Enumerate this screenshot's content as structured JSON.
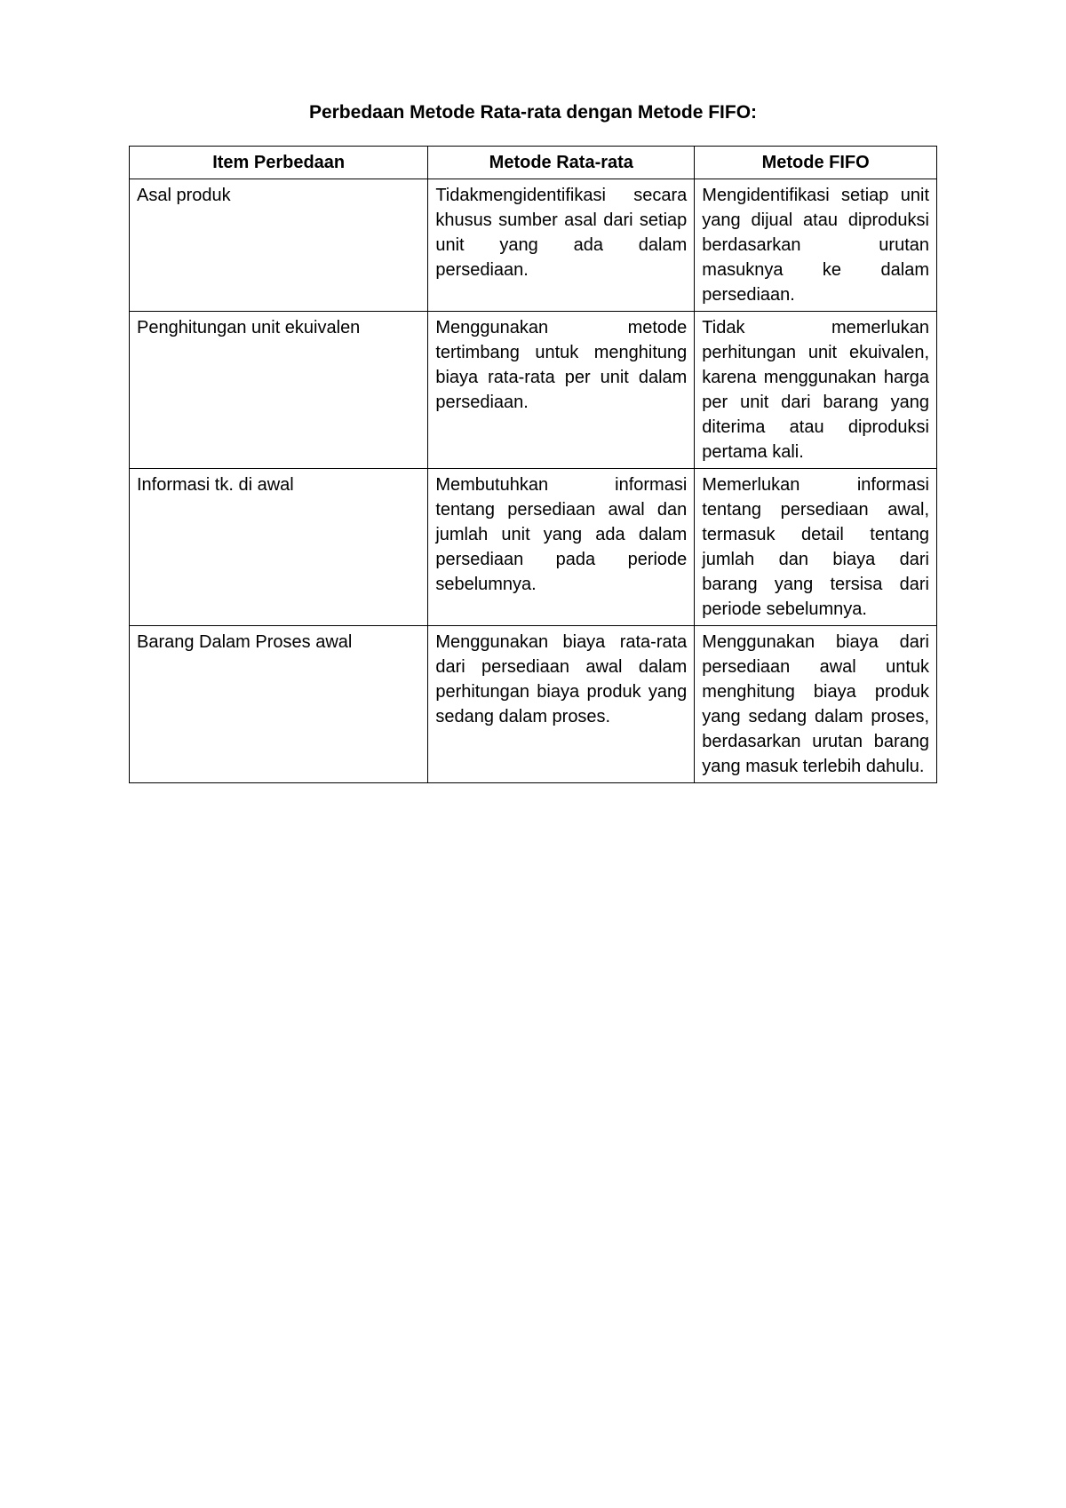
{
  "title": "Perbedaan Metode Rata-rata dengan  Metode FIFO:",
  "headers": {
    "col1": "Item Perbedaan",
    "col2": "Metode Rata-rata",
    "col3": "Metode FIFO"
  },
  "rows": [
    {
      "item": "Asal produk",
      "method1": "Tidakmengidentifikasi secara khusus sumber asal dari setiap unit yang ada dalam persediaan.",
      "method2": "Mengidentifikasi setiap unit yang dijual atau diproduksi berdasarkan urutan masuknya ke dalam persediaan."
    },
    {
      "item": "Penghitungan unit ekuivalen",
      "method1": "Menggunakan metode tertimbang untuk menghitung biaya rata-rata per unit dalam persediaan.",
      "method2": "Tidak memerlukan perhitungan unit ekuivalen, karena menggunakan harga per unit dari barang yang diterima atau diproduksi pertama kali."
    },
    {
      "item": "Informasi tk. di awal",
      "method1": "Membutuhkan informasi tentang persediaan awal dan jumlah unit yang ada dalam persediaan pada periode sebelumnya.",
      "method2": "Memerlukan informasi tentang persediaan awal, termasuk detail tentang jumlah dan biaya dari barang yang tersisa dari periode sebelumnya."
    },
    {
      "item": "Barang Dalam Proses awal",
      "method1": "Menggunakan biaya rata-rata dari persediaan awal dalam perhitungan biaya produk yang sedang dalam proses.",
      "method2": "Menggunakan biaya dari persediaan awal untuk menghitung biaya produk yang sedang dalam proses, berdasarkan urutan barang yang masuk terlebih dahulu."
    }
  ],
  "styling": {
    "title_fontsize": 21,
    "cell_fontsize": 20,
    "border_color": "#000000",
    "background_color": "#ffffff",
    "text_color": "#000000",
    "font_family": "Arial"
  }
}
